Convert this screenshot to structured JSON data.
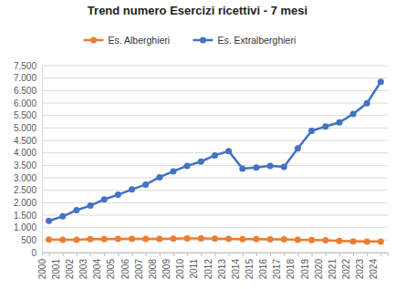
{
  "chart_data": {
    "type": "line",
    "title": "Trend numero Esercizi ricettivi - 7 mesi",
    "categories": [
      "2000",
      "2001",
      "2002",
      "2003",
      "2004",
      "2005",
      "2006",
      "2007",
      "2008",
      "2009",
      "2010",
      "2011",
      "2012",
      "2013",
      "2014",
      "2015",
      "2016",
      "2017",
      "2018",
      "2019",
      "2020",
      "2021",
      "2022",
      "2023",
      "2024"
    ],
    "series": [
      {
        "name": "Es. Alberghieri",
        "color": "#ED7D31",
        "marker": "circle",
        "line_style": "solid",
        "values": [
          520,
          510,
          510,
          540,
          540,
          545,
          550,
          550,
          550,
          555,
          570,
          570,
          555,
          545,
          540,
          540,
          535,
          530,
          515,
          505,
          495,
          465,
          445,
          435,
          440
        ]
      },
      {
        "name": "Es. Extralberghieri",
        "color": "#4472C4",
        "marker": "circle",
        "line_style": "solid",
        "values": [
          1270,
          1450,
          1700,
          1880,
          2130,
          2320,
          2530,
          2730,
          3020,
          3260,
          3480,
          3650,
          3900,
          4070,
          3370,
          3410,
          3480,
          3440,
          4180,
          4880,
          5060,
          5220,
          5560,
          5990,
          6850
        ]
      }
    ],
    "ylim": [
      0,
      7500
    ],
    "yticks": [
      0,
      500,
      {
        "value": 1000,
        "label": "1.000"
      },
      {
        "value": 1500,
        "label": "1.500"
      },
      {
        "value": 2000,
        "label": "2.000"
      },
      {
        "value": 2500,
        "label": "2.500"
      },
      {
        "value": 3000,
        "label": "3.000"
      },
      {
        "value": 3500,
        "label": "3.500"
      },
      {
        "value": 4000,
        "label": "4.000"
      },
      {
        "value": 4500,
        "label": "4.500"
      },
      {
        "value": 5000,
        "label": "5.000"
      },
      {
        "value": 5500,
        "label": "5.500"
      },
      {
        "value": 6000,
        "label": "6.000"
      },
      {
        "value": 6500,
        "label": "6.500"
      },
      {
        "value": 7000,
        "label": "7.000"
      },
      {
        "value": 7500,
        "label": "7.500"
      }
    ],
    "grid": true,
    "legend": "top"
  }
}
